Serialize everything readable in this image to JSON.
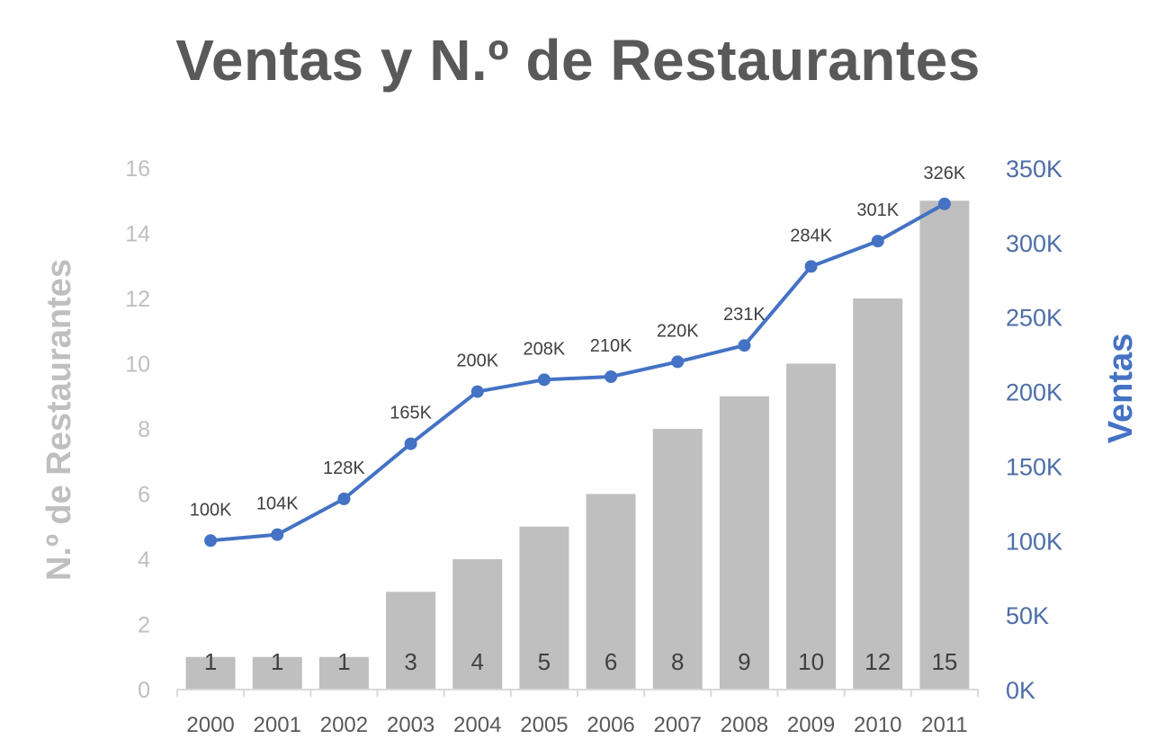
{
  "chart_data": {
    "type": "bar",
    "title": "Ventas y N.º de Restaurantes",
    "categories": [
      "2000",
      "2001",
      "2002",
      "2003",
      "2004",
      "2005",
      "2006",
      "2007",
      "2008",
      "2009",
      "2010",
      "2011"
    ],
    "series": [
      {
        "name": "N.º de Restaurantes",
        "type": "bar",
        "axis": "left",
        "values": [
          1,
          1,
          1,
          3,
          4,
          5,
          6,
          8,
          9,
          10,
          12,
          15
        ],
        "labels": [
          "1",
          "1",
          "1",
          "3",
          "4",
          "5",
          "6",
          "8",
          "9",
          "10",
          "12",
          "15"
        ]
      },
      {
        "name": "Ventas",
        "type": "line",
        "axis": "right",
        "values": [
          100000,
          104000,
          128000,
          165000,
          200000,
          208000,
          210000,
          220000,
          231000,
          284000,
          301000,
          326000
        ],
        "labels": [
          "100K",
          "104K",
          "128K",
          "165K",
          "200K",
          "208K",
          "210K",
          "220K",
          "231K",
          "284K",
          "301K",
          "326K"
        ]
      }
    ],
    "y_left": {
      "label": "N.º de Restaurantes",
      "range": [
        0,
        16
      ],
      "ticks": [
        0,
        2,
        4,
        6,
        8,
        10,
        12,
        14,
        16
      ],
      "tick_labels": [
        "0",
        "2",
        "4",
        "6",
        "8",
        "10",
        "12",
        "14",
        "16"
      ]
    },
    "y_right": {
      "label": "Ventas",
      "range": [
        0,
        350000
      ],
      "ticks": [
        0,
        50000,
        100000,
        150000,
        200000,
        250000,
        300000,
        350000
      ],
      "tick_labels": [
        "0K",
        "50K",
        "100K",
        "150K",
        "200K",
        "250K",
        "300K",
        "350K"
      ]
    },
    "grid": false,
    "legend": "none",
    "colors": {
      "bars": "#bfbfbf",
      "line": "#4472c4",
      "left_axis_text": "#bfbfbf",
      "right_axis_text": "#4472c4",
      "title": "#595959"
    }
  }
}
